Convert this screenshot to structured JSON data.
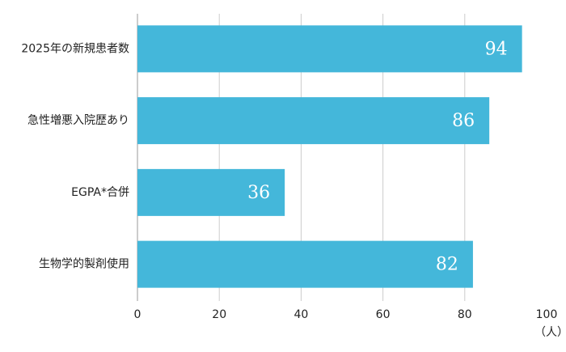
{
  "chart_data": {
    "type": "hbar",
    "categories": [
      "2025年の新規患者数",
      "急性増悪入院歴あり",
      "EGPA*合併",
      "生物学的製剤使用"
    ],
    "values": [
      94,
      86,
      36,
      82
    ],
    "color": "#44b7da",
    "x_label": "（人）",
    "xlim": [
      0,
      100
    ],
    "xticks": [
      0,
      20,
      40,
      60,
      80,
      100
    ],
    "grid": true
  }
}
